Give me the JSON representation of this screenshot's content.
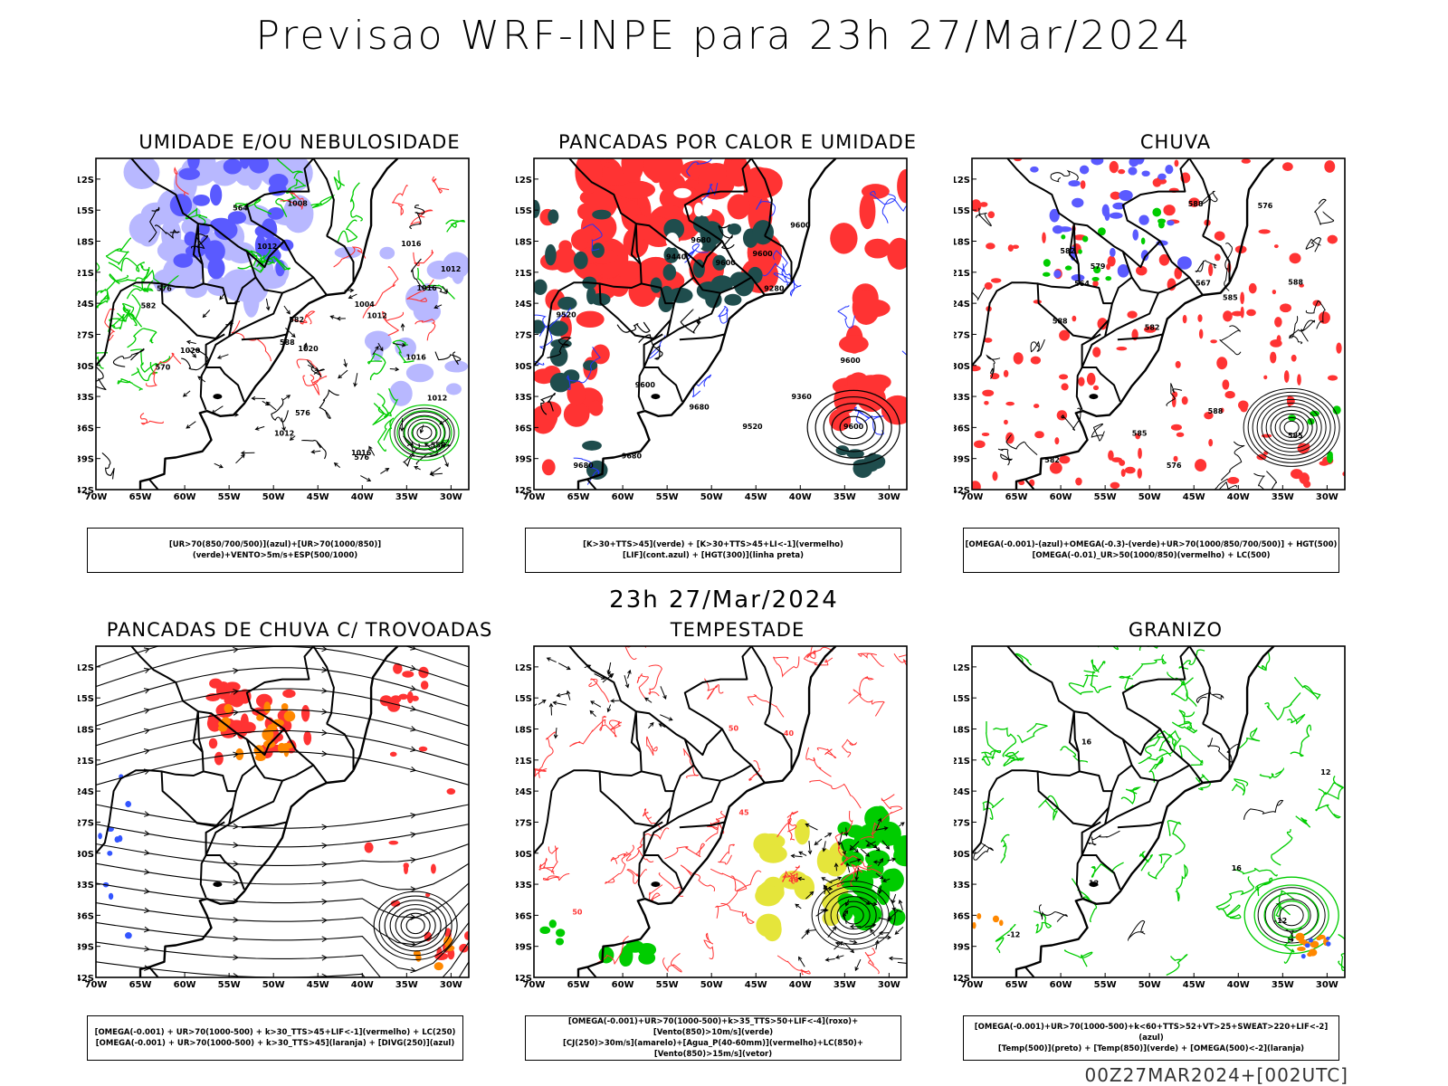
{
  "header": {
    "title": "Previsao WRF-INPE  para 23h 27/Mar/2024",
    "subtitle": "23h 27/Mar/2024",
    "footer": "00Z27MAR2024+[002UTC]"
  },
  "axes": {
    "lon_labels": [
      "70W",
      "65W",
      "60W",
      "55W",
      "50W",
      "45W",
      "40W",
      "35W",
      "30W"
    ],
    "lat_labels": [
      "12S",
      "15S",
      "18S",
      "21S",
      "24S",
      "27S",
      "30S",
      "33S",
      "36S",
      "39S",
      "42S"
    ]
  },
  "panels": [
    {
      "title": "UMIDADE E/OU NEBULOSIDADE",
      "legend": [
        "[UR>70(850/700/500)](azul)+[UR>70(1000/850)](verde)+VENTO>5m/s+ESP(500/1000)"
      ],
      "contour_labels": [
        "1012",
        "1016",
        "1016",
        "1016",
        "1012",
        "1016",
        "1012",
        "1020",
        "1020",
        "1012",
        "1008",
        "1004",
        "1012",
        "576",
        "576",
        "576",
        "570",
        "564",
        "558",
        "582",
        "588",
        "582"
      ]
    },
    {
      "title": "PANCADAS POR CALOR E UMIDADE",
      "legend": [
        "[K>30+TTS>45](verde) + [K>30+TTS>45+LI<-1](vermelho)",
        "[LIF](cont.azul) + [HGT(300)](linha preta)"
      ],
      "contour_labels": [
        "9680",
        "9680",
        "9680",
        "9600",
        "9680",
        "9600",
        "9600",
        "9600",
        "9600",
        "9520",
        "9440",
        "9520",
        "9360",
        "9280",
        "9600"
      ]
    },
    {
      "title": "CHUVA",
      "legend": [
        "[OMEGA(-0.001)-(azul)+OMEGA(-0.3)-(verde)+UR>70(1000/850/700/500)] + HGT(500)",
        "[OMEGA(-0.01)_UR>50(1000/850)(vermelho) + LC(500)"
      ],
      "contour_labels": [
        "588",
        "588",
        "588",
        "585",
        "585",
        "582",
        "579",
        "576",
        "576",
        "567",
        "564",
        "582",
        "585",
        "588",
        "582"
      ]
    },
    {
      "title": "PANCADAS DE CHUVA C/ TROVOADAS",
      "legend": [
        "[OMEGA(-0.001) + UR>70(1000-500) + k>30_TTS>45+LIF<-1](vermelho) + LC(250)",
        "[OMEGA(-0.001) + UR>70(1000-500) + k>30_TTS>45](laranja) + [DIVG(250)](azul)"
      ]
    },
    {
      "title": "TEMPESTADE",
      "legend": [
        "[OMEGA(-0.001)+UR>70(1000-500)+k>35_TTS>50+LIF<-4](roxo)+[Vento(850)>10m/s](verde)",
        "[CJ(250)>30m/s](amarelo)+[Agua_P(40-60mm)](vermelho)+LC(850)+[Vento(850)>15m/s](vetor)"
      ],
      "contour_labels": [
        "50",
        "40",
        "40",
        "50",
        "45"
      ]
    },
    {
      "title": "GRANIZO",
      "legend": [
        "[OMEGA(-0.001)+UR>70(1000-500)+k<60+TTS>52+VT>25+SWEAT>220+LIF<-2](azul)",
        "[Temp(500)](preto) + [Temp(850)](verde) + [OMEGA(500)<-2](laranja)"
      ],
      "contour_labels": [
        "-12",
        "-12",
        "16",
        "12",
        "12",
        "16"
      ]
    }
  ],
  "colors": {
    "blue": "#5a5aff",
    "light_blue": "#b8b8ff",
    "green": "#00cc00",
    "red": "#ff3333",
    "dark_teal": "#1f4d4d",
    "orange": "#ff8800",
    "yellow": "#e5e53b",
    "purple": "#b000ff"
  }
}
